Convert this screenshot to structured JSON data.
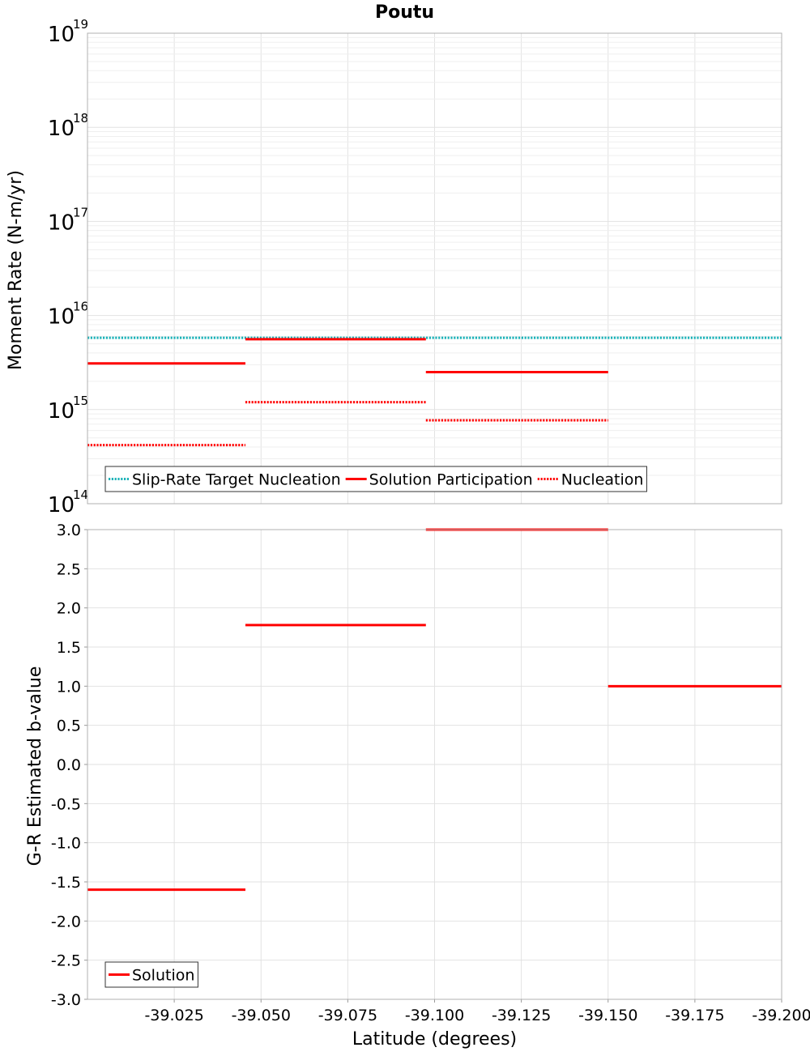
{
  "chart_data": [
    {
      "type": "line",
      "title": "Poutu",
      "ylabel": "Moment Rate (N-m/yr)",
      "yscale": "log",
      "ylim": [
        100000000000000.0,
        1e+19
      ],
      "xlim": [
        -39.0,
        -39.2
      ],
      "x_reversed": true,
      "y_tick_labels": [
        {
          "base": "10",
          "exp": "14"
        },
        {
          "base": "10",
          "exp": "15"
        },
        {
          "base": "10",
          "exp": "16"
        },
        {
          "base": "10",
          "exp": "17"
        },
        {
          "base": "10",
          "exp": "18"
        },
        {
          "base": "10",
          "exp": "19"
        }
      ],
      "grid": true,
      "legend": {
        "placement": "bottom-left"
      },
      "series": [
        {
          "name": "Slip-Rate Target Nucleation",
          "color": "#1ab2b8",
          "style": "dotted",
          "segments": [
            {
              "x": [
                -39.0,
                -39.2
              ],
              "y": 5800000000000000.0
            }
          ]
        },
        {
          "name": "Solution Participation",
          "color": "#ff0000",
          "style": "solid",
          "segments": [
            {
              "x": [
                -39.0,
                -39.0455
              ],
              "y": 3100000000000000.0
            },
            {
              "x": [
                -39.0455,
                -39.0975
              ],
              "y": 5600000000000000.0
            },
            {
              "x": [
                -39.0975,
                -39.15
              ],
              "y": 2500000000000000.0
            }
          ]
        },
        {
          "name": "Nucleation",
          "color": "#ff0000",
          "style": "dotted",
          "segments": [
            {
              "x": [
                -39.0,
                -39.0455
              ],
              "y": 420000000000000.0
            },
            {
              "x": [
                -39.0455,
                -39.0975
              ],
              "y": 1200000000000000.0
            },
            {
              "x": [
                -39.0975,
                -39.15
              ],
              "y": 770000000000000.0
            }
          ]
        }
      ]
    },
    {
      "type": "line",
      "title": "",
      "xlabel": "Latitude (degrees)",
      "ylabel": "G-R Estimated b-value",
      "ylim": [
        -3.0,
        3.0
      ],
      "xlim": [
        -39.0,
        -39.2
      ],
      "x_reversed": true,
      "x_ticks": [
        -39.025,
        -39.05,
        -39.075,
        -39.1,
        -39.125,
        -39.15,
        -39.175,
        -39.2
      ],
      "x_tick_labels": [
        "-39.025",
        "-39.050",
        "-39.075",
        "-39.100",
        "-39.125",
        "-39.150",
        "-39.175",
        "-39.200"
      ],
      "y_ticks": [
        3.0,
        2.5,
        2.0,
        1.5,
        1.0,
        0.5,
        0.0,
        -0.5,
        -1.0,
        -1.5,
        -2.0,
        -2.5,
        -3.0
      ],
      "y_tick_labels": [
        "3.0",
        "2.5",
        "2.0",
        "1.5",
        "1.0",
        "0.5",
        "0.0",
        "-0.5",
        "-1.0",
        "-1.5",
        "-2.0",
        "-2.5",
        "-3.0"
      ],
      "grid": true,
      "legend": {
        "placement": "bottom-left"
      },
      "series": [
        {
          "name": "Solution",
          "color": "#ff0000",
          "style": "solid",
          "segments": [
            {
              "x": [
                -39.0,
                -39.0455
              ],
              "y": -1.6
            },
            {
              "x": [
                -39.0455,
                -39.0975
              ],
              "y": 1.78
            },
            {
              "x": [
                -39.0975,
                -39.15
              ],
              "y": 3.0
            },
            {
              "x": [
                -39.15,
                -39.2
              ],
              "y": 1.0
            }
          ]
        }
      ]
    }
  ]
}
